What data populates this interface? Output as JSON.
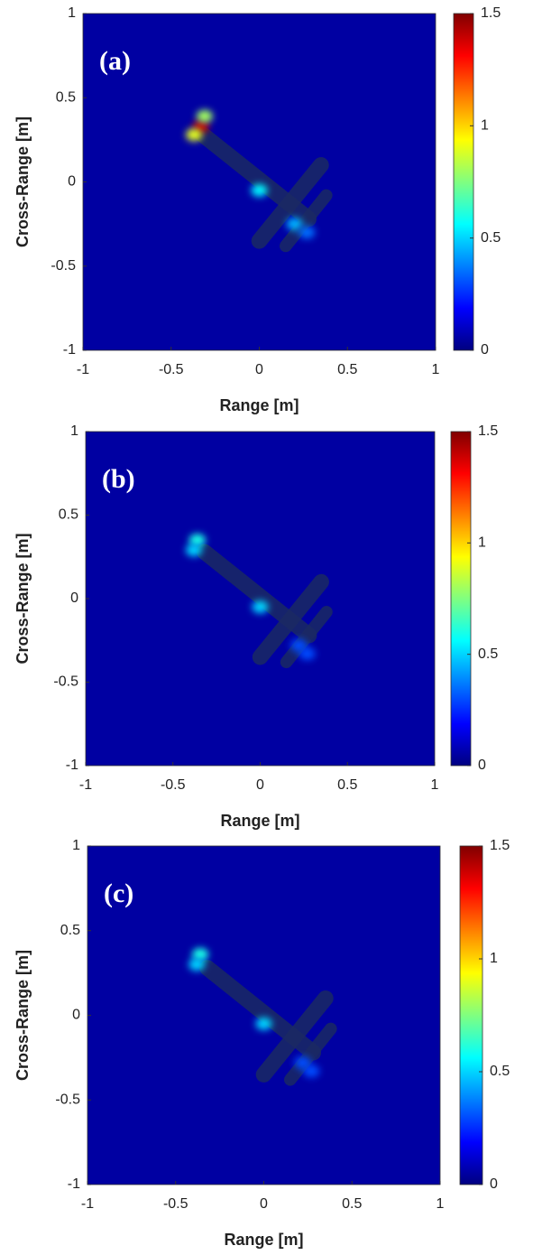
{
  "chart_data": [
    {
      "type": "heatmap",
      "label": "(a)",
      "xlabel": "Range [m]",
      "ylabel": "Cross-Range [m]",
      "xlim": [
        -1,
        1
      ],
      "ylim": [
        -1,
        1
      ],
      "xticks": [
        -1,
        -0.5,
        0,
        0.5,
        1
      ],
      "yticks": [
        -1,
        -0.5,
        0,
        0.5,
        1
      ],
      "clim": [
        0,
        1.5
      ],
      "cticks": [
        0,
        0.5,
        1,
        1.5
      ],
      "colormap": "jet",
      "background": 0.05,
      "points": {
        "x": [
          -0.33,
          -0.37,
          -0.31,
          0.0,
          0.2,
          0.27
        ],
        "y": [
          0.33,
          0.28,
          0.39,
          -0.05,
          -0.25,
          -0.3
        ],
        "values": [
          1.4,
          0.9,
          0.8,
          0.55,
          0.45,
          0.35
        ]
      }
    },
    {
      "type": "heatmap",
      "label": "(b)",
      "xlabel": "Range [m]",
      "ylabel": "Cross-Range [m]",
      "xlim": [
        -1,
        1
      ],
      "ylim": [
        -1,
        1
      ],
      "xticks": [
        -1,
        -0.5,
        0,
        0.5,
        1
      ],
      "yticks": [
        -1,
        -0.5,
        0,
        0.5,
        1
      ],
      "clim": [
        0,
        1.5
      ],
      "cticks": [
        0,
        0.5,
        1,
        1.5
      ],
      "colormap": "jet",
      "background": 0.05,
      "points": {
        "x": [
          -0.36,
          -0.38,
          0.0,
          0.22,
          0.27
        ],
        "y": [
          0.35,
          0.29,
          -0.05,
          -0.28,
          -0.33
        ],
        "values": [
          0.6,
          0.5,
          0.5,
          0.3,
          0.3
        ]
      }
    },
    {
      "type": "heatmap",
      "label": "(c)",
      "xlabel": "Range [m]",
      "ylabel": "Cross-Range [m]",
      "xlim": [
        -1,
        1
      ],
      "ylim": [
        -1,
        1
      ],
      "xticks": [
        -1,
        -0.5,
        0,
        0.5,
        1
      ],
      "yticks": [
        -1,
        -0.5,
        0,
        0.5,
        1
      ],
      "clim": [
        0,
        1.5
      ],
      "cticks": [
        0,
        0.5,
        1,
        1.5
      ],
      "colormap": "jet",
      "background": 0.05,
      "points": {
        "x": [
          -0.36,
          -0.38,
          0.0,
          0.22,
          0.27
        ],
        "y": [
          0.36,
          0.3,
          -0.05,
          -0.28,
          -0.33
        ],
        "values": [
          0.6,
          0.5,
          0.5,
          0.3,
          0.3
        ]
      }
    }
  ]
}
